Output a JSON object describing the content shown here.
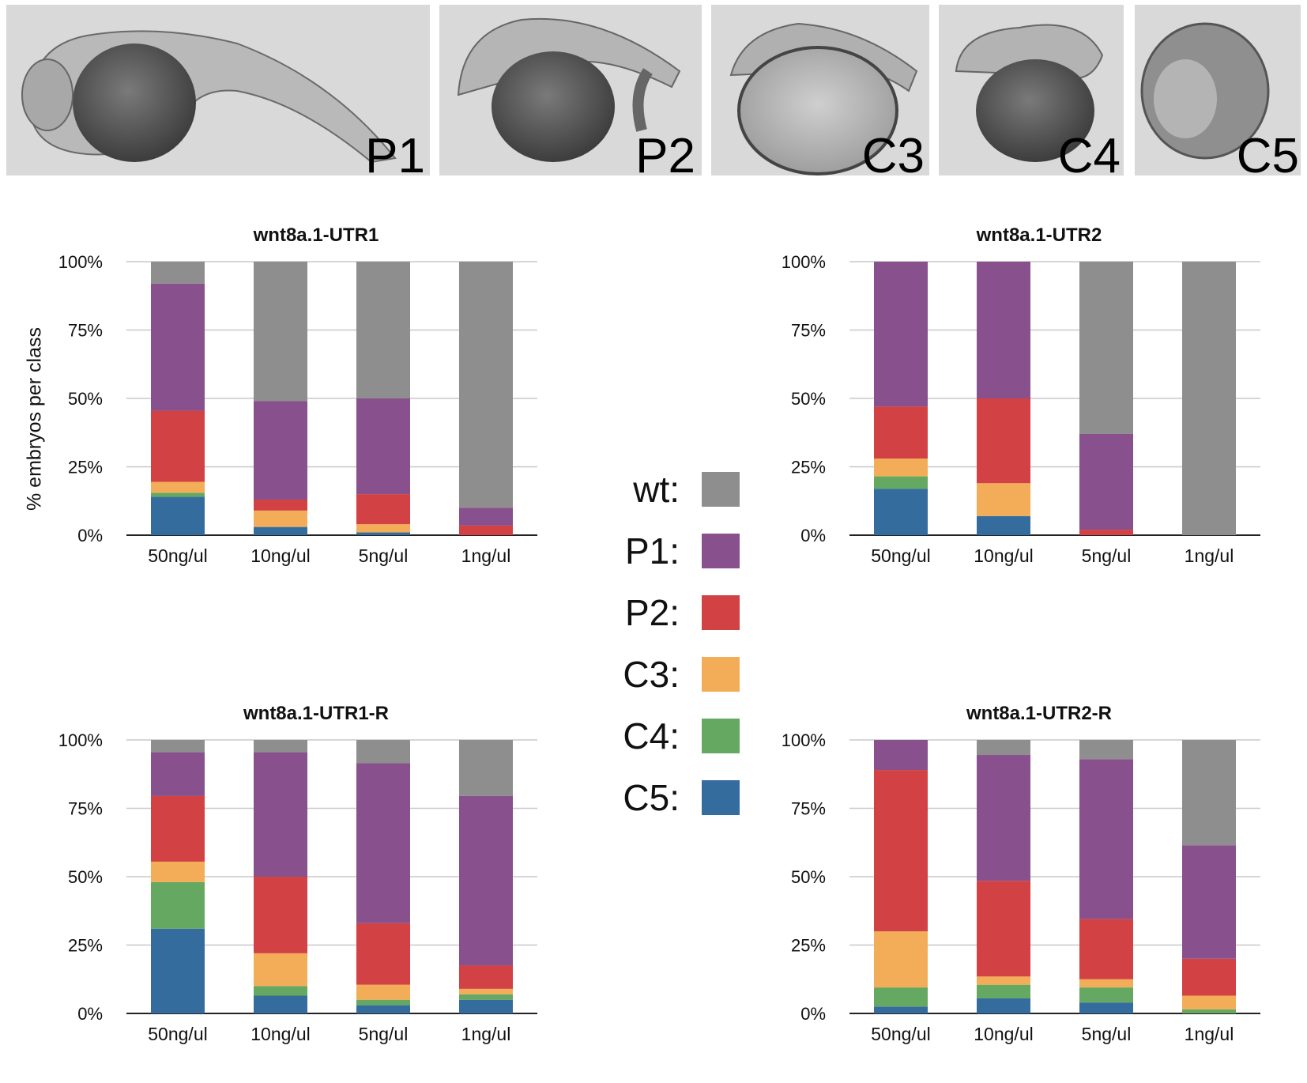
{
  "photos": [
    {
      "label": "P1"
    },
    {
      "label": "P2"
    },
    {
      "label": "C3"
    },
    {
      "label": "C4"
    },
    {
      "label": "C5"
    }
  ],
  "y_axis_label": "% embryos per class",
  "legend": [
    {
      "label": "wt:",
      "color": "#8e8e8e"
    },
    {
      "label": "P1:",
      "color": "#88508c"
    },
    {
      "label": "P2:",
      "color": "#d24143"
    },
    {
      "label": "C3:",
      "color": "#f3ad58"
    },
    {
      "label": "C4:",
      "color": "#64a862"
    },
    {
      "label": "C5:",
      "color": "#356c9e"
    }
  ],
  "chart_data": [
    {
      "type": "bar",
      "stacked": true,
      "title": "wnt8a.1-UTR1",
      "categories": [
        "50ng/ul",
        "10ng/ul",
        "5ng/ul",
        "1ng/ul"
      ],
      "ylim": [
        0,
        100
      ],
      "yticks": [
        "0%",
        "25%",
        "50%",
        "75%",
        "100%"
      ],
      "series": [
        {
          "name": "C5",
          "values": [
            14,
            3,
            1,
            0
          ]
        },
        {
          "name": "C4",
          "values": [
            1.5,
            0,
            0,
            0
          ]
        },
        {
          "name": "C3",
          "values": [
            4,
            6,
            3,
            0
          ]
        },
        {
          "name": "P2",
          "values": [
            26,
            4,
            11,
            3.5
          ]
        },
        {
          "name": "P1",
          "values": [
            46.5,
            36,
            35,
            6.5
          ]
        },
        {
          "name": "wt",
          "values": [
            8,
            51,
            50,
            90
          ]
        }
      ]
    },
    {
      "type": "bar",
      "stacked": true,
      "title": "wnt8a.1-UTR2",
      "categories": [
        "50ng/ul",
        "10ng/ul",
        "5ng/ul",
        "1ng/ul"
      ],
      "ylim": [
        0,
        100
      ],
      "yticks": [
        "0%",
        "25%",
        "50%",
        "75%",
        "100%"
      ],
      "series": [
        {
          "name": "C5",
          "values": [
            17,
            7,
            0,
            0
          ]
        },
        {
          "name": "C4",
          "values": [
            4.5,
            0,
            0,
            0
          ]
        },
        {
          "name": "C3",
          "values": [
            6.5,
            12,
            0,
            0
          ]
        },
        {
          "name": "P2",
          "values": [
            19,
            31,
            2,
            0
          ]
        },
        {
          "name": "P1",
          "values": [
            53,
            50,
            35,
            0
          ]
        },
        {
          "name": "wt",
          "values": [
            0,
            0,
            63,
            100
          ]
        }
      ]
    },
    {
      "type": "bar",
      "stacked": true,
      "title": "wnt8a.1-UTR1-R",
      "categories": [
        "50ng/ul",
        "10ng/ul",
        "5ng/ul",
        "1ng/ul"
      ],
      "ylim": [
        0,
        100
      ],
      "yticks": [
        "0%",
        "25%",
        "50%",
        "75%",
        "100%"
      ],
      "series": [
        {
          "name": "C5",
          "values": [
            31,
            6.5,
            3,
            5
          ]
        },
        {
          "name": "C4",
          "values": [
            17,
            3.5,
            2,
            2
          ]
        },
        {
          "name": "C3",
          "values": [
            7.5,
            12,
            5.5,
            2
          ]
        },
        {
          "name": "P2",
          "values": [
            24,
            28,
            22.5,
            8.5
          ]
        },
        {
          "name": "P1",
          "values": [
            16,
            45.5,
            58.5,
            62
          ]
        },
        {
          "name": "wt",
          "values": [
            4.5,
            4.5,
            8.5,
            20.5
          ]
        }
      ]
    },
    {
      "type": "bar",
      "stacked": true,
      "title": "wnt8a.1-UTR2-R",
      "categories": [
        "50ng/ul",
        "10ng/ul",
        "5ng/ul",
        "1ng/ul"
      ],
      "ylim": [
        0,
        100
      ],
      "yticks": [
        "0%",
        "25%",
        "50%",
        "75%",
        "100%"
      ],
      "series": [
        {
          "name": "C5",
          "values": [
            2.5,
            5.5,
            4,
            0
          ]
        },
        {
          "name": "C4",
          "values": [
            7,
            5,
            5.5,
            1.5
          ]
        },
        {
          "name": "C3",
          "values": [
            20.5,
            3,
            3,
            5
          ]
        },
        {
          "name": "P2",
          "values": [
            59,
            35,
            22,
            13.5
          ]
        },
        {
          "name": "P1",
          "values": [
            11,
            46,
            58.5,
            41.5
          ]
        },
        {
          "name": "wt",
          "values": [
            0,
            5.5,
            7,
            38.5
          ]
        }
      ]
    }
  ]
}
